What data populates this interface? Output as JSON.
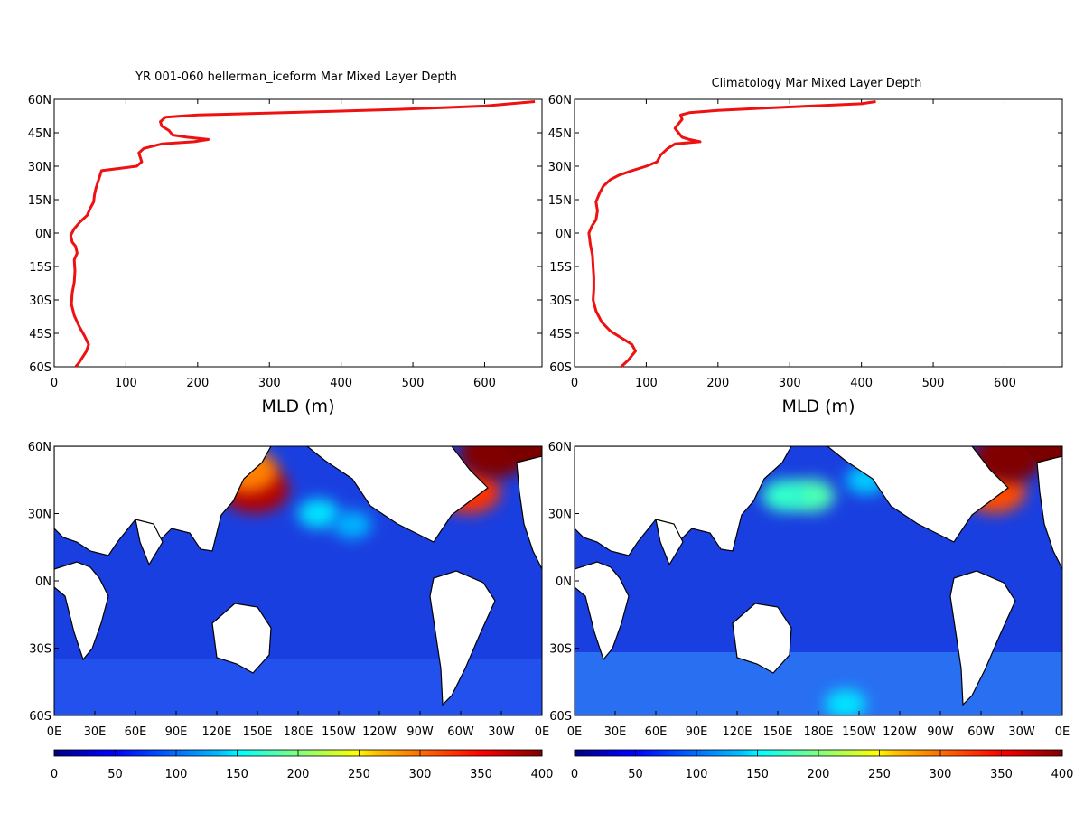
{
  "chart_data": [
    {
      "type": "line",
      "title": "YR 001-060 hellerman_iceform Mar Mixed Layer Depth",
      "xlabel": "MLD (m)",
      "xlim": [
        0,
        680
      ],
      "ylim": [
        -60,
        60
      ],
      "xticks": [
        "0",
        "100",
        "200",
        "300",
        "400",
        "500",
        "600"
      ],
      "yticks": [
        "60N",
        "45N",
        "30N",
        "15N",
        "0N",
        "15S",
        "30S",
        "45S",
        "60S"
      ],
      "color": "#ee1111",
      "series": [
        {
          "points": [
            [
              30,
              -60
            ],
            [
              35,
              -58
            ],
            [
              45,
              -53
            ],
            [
              48,
              -50
            ],
            [
              42,
              -46
            ],
            [
              35,
              -42
            ],
            [
              28,
              -37
            ],
            [
              24,
              -32
            ],
            [
              25,
              -27
            ],
            [
              28,
              -22
            ],
            [
              29,
              -17
            ],
            [
              28,
              -12
            ],
            [
              32,
              -9
            ],
            [
              30,
              -6
            ],
            [
              25,
              -4
            ],
            [
              23,
              -1
            ],
            [
              28,
              2
            ],
            [
              36,
              5
            ],
            [
              46,
              8
            ],
            [
              50,
              11
            ],
            [
              55,
              14
            ],
            [
              56,
              17
            ],
            [
              58,
              20
            ],
            [
              62,
              24
            ],
            [
              66,
              28
            ],
            [
              90,
              29
            ],
            [
              115,
              30
            ],
            [
              122,
              32
            ],
            [
              118,
              36
            ],
            [
              125,
              38
            ],
            [
              150,
              40
            ],
            [
              195,
              41
            ],
            [
              215,
              42
            ],
            [
              185,
              43
            ],
            [
              165,
              44
            ],
            [
              160,
              46
            ],
            [
              150,
              48
            ],
            [
              148,
              50
            ],
            [
              155,
              52
            ],
            [
              200,
              53
            ],
            [
              320,
              54
            ],
            [
              480,
              55.5
            ],
            [
              600,
              57
            ],
            [
              670,
              59
            ]
          ]
        }
      ]
    },
    {
      "type": "line",
      "title": "Climatology Mar Mixed Layer Depth",
      "xlabel": "MLD (m)",
      "xlim": [
        0,
        680
      ],
      "ylim": [
        -60,
        60
      ],
      "xticks": [
        "0",
        "100",
        "200",
        "300",
        "400",
        "500",
        "600"
      ],
      "yticks": [
        "60N",
        "45N",
        "30N",
        "15N",
        "0N",
        "15S",
        "30S",
        "45S",
        "60S"
      ],
      "color": "#ee1111",
      "series": [
        {
          "points": [
            [
              65,
              -60
            ],
            [
              75,
              -57
            ],
            [
              85,
              -53
            ],
            [
              80,
              -50
            ],
            [
              65,
              -47
            ],
            [
              50,
              -44
            ],
            [
              38,
              -40
            ],
            [
              30,
              -35
            ],
            [
              26,
              -30
            ],
            [
              27,
              -25
            ],
            [
              27,
              -20
            ],
            [
              26,
              -15
            ],
            [
              25,
              -10
            ],
            [
              22,
              -5
            ],
            [
              20,
              0
            ],
            [
              24,
              3
            ],
            [
              30,
              6
            ],
            [
              32,
              10
            ],
            [
              30,
              14
            ],
            [
              35,
              18
            ],
            [
              40,
              21
            ],
            [
              50,
              24
            ],
            [
              62,
              26
            ],
            [
              80,
              28
            ],
            [
              100,
              30
            ],
            [
              115,
              32
            ],
            [
              120,
              35
            ],
            [
              130,
              38
            ],
            [
              140,
              40
            ],
            [
              175,
              41
            ],
            [
              160,
              42
            ],
            [
              150,
              43
            ],
            [
              145,
              45
            ],
            [
              140,
              47
            ],
            [
              145,
              49
            ],
            [
              150,
              51
            ],
            [
              148,
              53
            ],
            [
              160,
              54
            ],
            [
              200,
              55
            ],
            [
              260,
              56
            ],
            [
              330,
              57
            ],
            [
              400,
              58
            ],
            [
              420,
              59
            ]
          ]
        }
      ]
    },
    {
      "type": "heatmap",
      "xticks": [
        "0E",
        "30E",
        "60E",
        "90E",
        "120E",
        "150E",
        "180E",
        "150W",
        "120W",
        "90W",
        "60W",
        "30W",
        "0E"
      ],
      "yticks": [
        "60N",
        "30N",
        "0N",
        "30S",
        "60S"
      ],
      "xlim": [
        0,
        360
      ],
      "ylim": [
        -60,
        60
      ],
      "colorbar": {
        "range": [
          0,
          400
        ],
        "ticks": [
          "0",
          "50",
          "100",
          "150",
          "200",
          "250",
          "300",
          "350",
          "400"
        ]
      },
      "hotspots": [
        {
          "lon": 148,
          "lat": 41,
          "value": 380
        },
        {
          "lon": 143,
          "lat": 49,
          "value": 300
        },
        {
          "lon": 306,
          "lat": 40,
          "value": 330
        },
        {
          "lon": 325,
          "lat": 57,
          "value": 400
        },
        {
          "lon": 195,
          "lat": 30,
          "value": 140
        },
        {
          "lon": 220,
          "lat": 25,
          "value": 120
        }
      ]
    },
    {
      "type": "heatmap",
      "xticks": [
        "0E",
        "30E",
        "60E",
        "90E",
        "120E",
        "150E",
        "180E",
        "150W",
        "120W",
        "90W",
        "60W",
        "30W",
        "0E"
      ],
      "yticks": [
        "60N",
        "30N",
        "0N",
        "30S",
        "60S"
      ],
      "xlim": [
        0,
        360
      ],
      "ylim": [
        -60,
        60
      ],
      "colorbar": {
        "range": [
          0,
          400
        ],
        "ticks": [
          "0",
          "50",
          "100",
          "150",
          "200",
          "250",
          "300",
          "350",
          "400"
        ]
      },
      "hotspots": [
        {
          "lon": 310,
          "lat": 40,
          "value": 320
        },
        {
          "lon": 320,
          "lat": 55,
          "value": 400
        },
        {
          "lon": 175,
          "lat": 38,
          "value": 180
        },
        {
          "lon": 155,
          "lat": 38,
          "value": 170
        },
        {
          "lon": 215,
          "lat": 45,
          "value": 130
        },
        {
          "lon": 200,
          "lat": -55,
          "value": 140
        }
      ]
    }
  ]
}
